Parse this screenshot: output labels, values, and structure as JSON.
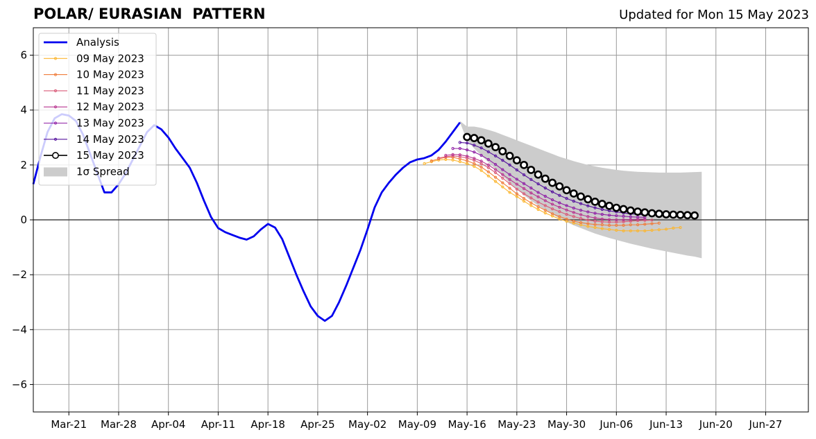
{
  "chart_data": {
    "type": "line",
    "title": "POLAR/ EURASIAN  PATTERN",
    "subtitle": "Updated for Mon 15 May 2023",
    "ylim": [
      -7,
      7
    ],
    "yticks": [
      -6,
      -4,
      -2,
      0,
      2,
      4,
      6
    ],
    "ytick_labels": [
      "−6",
      "−4",
      "−2",
      "0",
      "2",
      "4",
      "6"
    ],
    "xlim": [
      "2023-03-16",
      "2023-07-03"
    ],
    "xticks": [
      {
        "date": "2023-03-21",
        "label": "Mar-21"
      },
      {
        "date": "2023-03-28",
        "label": "Mar-28"
      },
      {
        "date": "2023-04-04",
        "label": "Apr-04"
      },
      {
        "date": "2023-04-11",
        "label": "Apr-11"
      },
      {
        "date": "2023-04-18",
        "label": "Apr-18"
      },
      {
        "date": "2023-04-25",
        "label": "Apr-25"
      },
      {
        "date": "2023-05-02",
        "label": "May-02"
      },
      {
        "date": "2023-05-09",
        "label": "May-09"
      },
      {
        "date": "2023-05-16",
        "label": "May-16"
      },
      {
        "date": "2023-05-23",
        "label": "May-23"
      },
      {
        "date": "2023-05-30",
        "label": "May-30"
      },
      {
        "date": "2023-06-06",
        "label": "Jun-06"
      },
      {
        "date": "2023-06-13",
        "label": "Jun-13"
      },
      {
        "date": "2023-06-20",
        "label": "Jun-20"
      },
      {
        "date": "2023-06-27",
        "label": "Jun-27"
      }
    ],
    "grid": true,
    "legend_position": "top-left",
    "analysis": {
      "name": "Analysis",
      "color": "#0000ee",
      "start_date": "2023-03-16",
      "values": [
        1.3,
        2.3,
        3.2,
        3.7,
        3.85,
        3.8,
        3.6,
        3.1,
        2.4,
        1.7,
        1.0,
        1.0,
        1.3,
        1.7,
        2.2,
        2.7,
        3.2,
        3.45,
        3.3,
        3.0,
        2.6,
        2.25,
        1.9,
        1.35,
        0.7,
        0.1,
        -0.3,
        -0.45,
        -0.55,
        -0.65,
        -0.72,
        -0.6,
        -0.35,
        -0.15,
        -0.28,
        -0.7,
        -1.35,
        -2.0,
        -2.6,
        -3.15,
        -3.5,
        -3.68,
        -3.5,
        -3.0,
        -2.4,
        -1.75,
        -1.1,
        -0.35,
        0.45,
        1.0,
        1.35,
        1.65,
        1.9,
        2.1,
        2.2,
        2.25,
        2.35,
        2.55,
        2.85,
        3.2,
        3.55
      ]
    },
    "forecasts": [
      {
        "name": "09 May 2023",
        "color": "#fbb630",
        "start_date": "2023-05-10",
        "values": [
          2.05,
          2.12,
          2.18,
          2.2,
          2.18,
          2.12,
          2.05,
          1.95,
          1.8,
          1.6,
          1.4,
          1.2,
          1.0,
          0.85,
          0.68,
          0.52,
          0.38,
          0.25,
          0.14,
          0.03,
          -0.05,
          -0.12,
          -0.18,
          -0.24,
          -0.28,
          -0.32,
          -0.35,
          -0.38,
          -0.4,
          -0.4,
          -0.4,
          -0.4,
          -0.38,
          -0.36,
          -0.34,
          -0.3,
          -0.28
        ]
      },
      {
        "name": "10 May 2023",
        "color": "#f07d3c",
        "start_date": "2023-05-11",
        "values": [
          2.15,
          2.22,
          2.28,
          2.28,
          2.22,
          2.15,
          2.05,
          1.92,
          1.75,
          1.55,
          1.35,
          1.15,
          0.95,
          0.78,
          0.62,
          0.48,
          0.35,
          0.22,
          0.12,
          0.03,
          -0.05,
          -0.1,
          -0.14,
          -0.17,
          -0.18,
          -0.2,
          -0.2,
          -0.2,
          -0.18,
          -0.18,
          -0.16,
          -0.14,
          -0.12
        ]
      },
      {
        "name": "11 May 2023",
        "color": "#d95a78",
        "start_date": "2023-05-12",
        "values": [
          2.25,
          2.3,
          2.33,
          2.3,
          2.25,
          2.17,
          2.05,
          1.9,
          1.72,
          1.52,
          1.32,
          1.12,
          0.95,
          0.8,
          0.65,
          0.52,
          0.4,
          0.3,
          0.2,
          0.12,
          0.05,
          -0.01,
          -0.05,
          -0.07,
          -0.08,
          -0.08,
          -0.07,
          -0.05,
          -0.03,
          -0.02,
          -0.01
        ]
      },
      {
        "name": "12 May 2023",
        "color": "#b8348f",
        "start_date": "2023-05-13",
        "values": [
          2.35,
          2.38,
          2.37,
          2.32,
          2.24,
          2.14,
          2.0,
          1.83,
          1.65,
          1.47,
          1.3,
          1.14,
          0.98,
          0.84,
          0.7,
          0.57,
          0.46,
          0.36,
          0.27,
          0.19,
          0.12,
          0.07,
          0.03,
          0.01,
          0.0,
          0.0,
          0.01,
          0.02,
          0.03
        ]
      },
      {
        "name": "13 May 2023",
        "color": "#8e1ea5",
        "start_date": "2023-05-14",
        "values": [
          2.6,
          2.6,
          2.55,
          2.47,
          2.35,
          2.2,
          2.02,
          1.83,
          1.65,
          1.48,
          1.32,
          1.16,
          1.0,
          0.86,
          0.73,
          0.62,
          0.52,
          0.43,
          0.35,
          0.29,
          0.24,
          0.2,
          0.17,
          0.15,
          0.13,
          0.11,
          0.1,
          0.09
        ]
      },
      {
        "name": "14 May 2023",
        "color": "#55129e",
        "start_date": "2023-05-15",
        "values": [
          2.82,
          2.8,
          2.72,
          2.62,
          2.48,
          2.33,
          2.17,
          2.0,
          1.82,
          1.64,
          1.47,
          1.31,
          1.16,
          1.02,
          0.89,
          0.78,
          0.68,
          0.59,
          0.51,
          0.44,
          0.38,
          0.33,
          0.29,
          0.25,
          0.22,
          0.2,
          0.18
        ]
      },
      {
        "name": "15 May 2023",
        "color": "#000000",
        "start_date": "2023-05-16",
        "values": [
          3.02,
          2.98,
          2.9,
          2.78,
          2.65,
          2.5,
          2.33,
          2.17,
          2.0,
          1.82,
          1.65,
          1.5,
          1.35,
          1.22,
          1.08,
          0.96,
          0.85,
          0.75,
          0.66,
          0.58,
          0.51,
          0.44,
          0.39,
          0.34,
          0.3,
          0.27,
          0.24,
          0.22,
          0.2,
          0.19,
          0.18,
          0.17,
          0.16
        ]
      }
    ],
    "spread": {
      "name": "1σ Spread",
      "color": "#cccccc",
      "start_date": "2023-05-15",
      "upper": [
        3.6,
        3.4,
        3.4,
        3.35,
        3.28,
        3.2,
        3.1,
        3.0,
        2.9,
        2.8,
        2.7,
        2.6,
        2.5,
        2.4,
        2.3,
        2.22,
        2.14,
        2.07,
        2.0,
        1.95,
        1.9,
        1.86,
        1.82,
        1.79,
        1.77,
        1.75,
        1.74,
        1.73,
        1.72,
        1.72,
        1.72,
        1.72,
        1.73,
        1.74,
        1.75
      ],
      "lower": [
        3.55,
        2.9,
        2.6,
        2.35,
        2.1,
        1.85,
        1.6,
        1.35,
        1.12,
        0.9,
        0.7,
        0.52,
        0.35,
        0.2,
        0.05,
        -0.08,
        -0.2,
        -0.3,
        -0.4,
        -0.5,
        -0.58,
        -0.66,
        -0.73,
        -0.8,
        -0.87,
        -0.93,
        -0.99,
        -1.05,
        -1.1,
        -1.15,
        -1.2,
        -1.25,
        -1.3,
        -1.34,
        -1.4
      ]
    }
  }
}
